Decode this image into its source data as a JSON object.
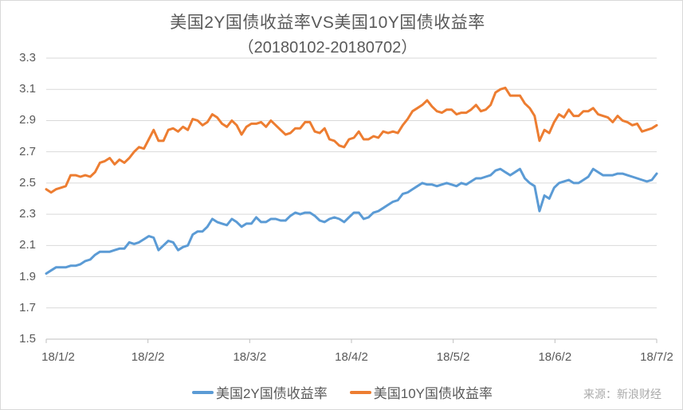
{
  "source": "来源：新浪财经",
  "chart_data": {
    "type": "line",
    "title": "美国2Y国债收益率VS美国10Y国债收益率",
    "subtitle": "（20180102-20180702）",
    "ylim": [
      1.5,
      3.3
    ],
    "y_ticks": [
      1.5,
      1.7,
      1.9,
      2.1,
      2.3,
      2.5,
      2.7,
      2.9,
      3.1,
      3.3
    ],
    "x_tick_labels": [
      "18/1/2",
      "18/2/2",
      "18/3/2",
      "18/4/2",
      "18/5/2",
      "18/6/2",
      "18/7/2"
    ],
    "grid": "horizontal",
    "legend_position": "bottom",
    "colors": {
      "grid": "#d9d9d9",
      "axis": "#bfbfbf",
      "text": "#595959",
      "source": "#aaaaaa"
    },
    "x": [
      "1/2",
      "1/3",
      "1/4",
      "1/5",
      "1/8",
      "1/9",
      "1/10",
      "1/11",
      "1/12",
      "1/16",
      "1/17",
      "1/18",
      "1/19",
      "1/22",
      "1/23",
      "1/24",
      "1/25",
      "1/26",
      "1/29",
      "1/30",
      "1/31",
      "2/1",
      "2/2",
      "2/5",
      "2/6",
      "2/7",
      "2/8",
      "2/9",
      "2/12",
      "2/13",
      "2/14",
      "2/15",
      "2/16",
      "2/20",
      "2/21",
      "2/22",
      "2/23",
      "2/26",
      "2/27",
      "2/28",
      "3/1",
      "3/2",
      "3/5",
      "3/6",
      "3/7",
      "3/8",
      "3/9",
      "3/12",
      "3/13",
      "3/14",
      "3/15",
      "3/16",
      "3/19",
      "3/20",
      "3/21",
      "3/22",
      "3/23",
      "3/26",
      "3/27",
      "3/28",
      "3/29",
      "4/2",
      "4/3",
      "4/4",
      "4/5",
      "4/6",
      "4/9",
      "4/10",
      "4/11",
      "4/12",
      "4/13",
      "4/16",
      "4/17",
      "4/18",
      "4/19",
      "4/20",
      "4/23",
      "4/24",
      "4/25",
      "4/26",
      "4/27",
      "4/30",
      "5/1",
      "5/2",
      "5/3",
      "5/4",
      "5/7",
      "5/8",
      "5/9",
      "5/10",
      "5/11",
      "5/14",
      "5/15",
      "5/16",
      "5/17",
      "5/18",
      "5/21",
      "5/22",
      "5/23",
      "5/24",
      "5/25",
      "5/29",
      "5/30",
      "5/31",
      "6/1",
      "6/4",
      "6/5",
      "6/6",
      "6/7",
      "6/8",
      "6/11",
      "6/12",
      "6/13",
      "6/14",
      "6/15",
      "6/18",
      "6/19",
      "6/20",
      "6/21",
      "6/22",
      "6/25",
      "6/26",
      "6/27",
      "6/28",
      "6/29",
      "7/2"
    ],
    "series": [
      {
        "id": "us2y",
        "name": "美国2Y国债收益率",
        "color": "#5b9bd5",
        "values": [
          1.92,
          1.94,
          1.96,
          1.96,
          1.96,
          1.97,
          1.97,
          1.98,
          2.0,
          2.01,
          2.04,
          2.06,
          2.06,
          2.06,
          2.07,
          2.08,
          2.08,
          2.12,
          2.11,
          2.12,
          2.14,
          2.16,
          2.15,
          2.07,
          2.1,
          2.13,
          2.12,
          2.07,
          2.09,
          2.1,
          2.17,
          2.19,
          2.19,
          2.22,
          2.27,
          2.25,
          2.24,
          2.23,
          2.27,
          2.25,
          2.22,
          2.24,
          2.24,
          2.28,
          2.25,
          2.25,
          2.27,
          2.27,
          2.26,
          2.26,
          2.29,
          2.31,
          2.3,
          2.31,
          2.31,
          2.29,
          2.26,
          2.25,
          2.27,
          2.28,
          2.27,
          2.25,
          2.28,
          2.31,
          2.31,
          2.27,
          2.28,
          2.31,
          2.32,
          2.34,
          2.36,
          2.38,
          2.39,
          2.43,
          2.44,
          2.46,
          2.48,
          2.5,
          2.49,
          2.49,
          2.48,
          2.49,
          2.5,
          2.49,
          2.48,
          2.5,
          2.49,
          2.51,
          2.53,
          2.53,
          2.54,
          2.55,
          2.58,
          2.59,
          2.57,
          2.55,
          2.57,
          2.59,
          2.53,
          2.5,
          2.48,
          2.32,
          2.42,
          2.4,
          2.47,
          2.5,
          2.51,
          2.52,
          2.5,
          2.5,
          2.52,
          2.54,
          2.59,
          2.57,
          2.55,
          2.55,
          2.55,
          2.56,
          2.56,
          2.55,
          2.54,
          2.53,
          2.52,
          2.51,
          2.52,
          2.56
        ]
      },
      {
        "id": "us10y",
        "name": "美国10Y国债收益率",
        "color": "#ed7d31",
        "values": [
          2.46,
          2.44,
          2.46,
          2.47,
          2.48,
          2.55,
          2.55,
          2.54,
          2.55,
          2.54,
          2.57,
          2.63,
          2.64,
          2.66,
          2.62,
          2.65,
          2.63,
          2.66,
          2.7,
          2.73,
          2.72,
          2.78,
          2.84,
          2.77,
          2.77,
          2.84,
          2.85,
          2.83,
          2.86,
          2.84,
          2.91,
          2.9,
          2.87,
          2.89,
          2.94,
          2.92,
          2.88,
          2.86,
          2.9,
          2.87,
          2.81,
          2.86,
          2.88,
          2.88,
          2.89,
          2.86,
          2.9,
          2.87,
          2.84,
          2.81,
          2.82,
          2.85,
          2.85,
          2.89,
          2.89,
          2.83,
          2.82,
          2.85,
          2.78,
          2.77,
          2.74,
          2.73,
          2.78,
          2.79,
          2.83,
          2.78,
          2.78,
          2.8,
          2.79,
          2.83,
          2.82,
          2.83,
          2.82,
          2.87,
          2.91,
          2.96,
          2.98,
          3.0,
          3.03,
          2.99,
          2.96,
          2.95,
          2.97,
          2.97,
          2.94,
          2.95,
          2.95,
          2.97,
          3.0,
          2.96,
          2.97,
          3.0,
          3.08,
          3.1,
          3.11,
          3.06,
          3.06,
          3.06,
          3.01,
          2.98,
          2.93,
          2.77,
          2.84,
          2.82,
          2.89,
          2.94,
          2.92,
          2.97,
          2.93,
          2.93,
          2.96,
          2.96,
          2.98,
          2.94,
          2.93,
          2.92,
          2.89,
          2.93,
          2.9,
          2.89,
          2.87,
          2.88,
          2.83,
          2.84,
          2.85,
          2.87
        ]
      }
    ]
  }
}
